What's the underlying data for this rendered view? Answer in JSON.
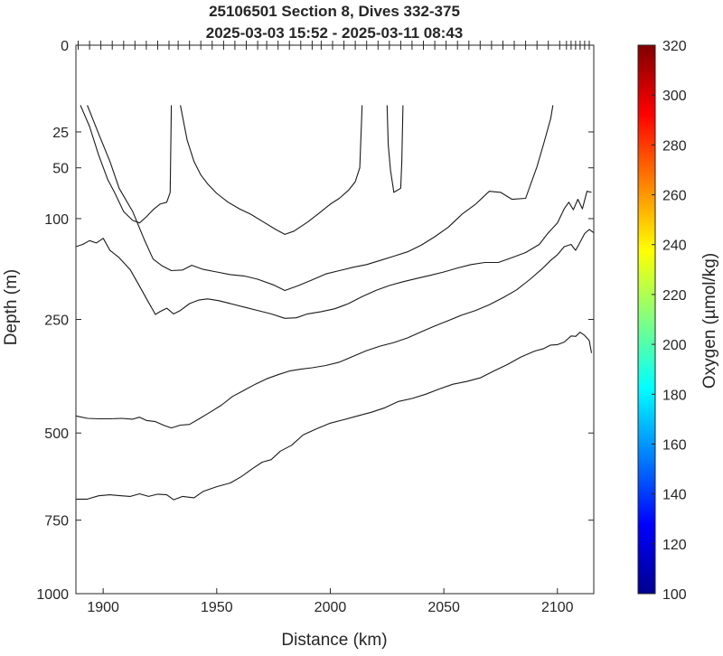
{
  "chart_data": {
    "type": "contour",
    "title": [
      "25106501 Section 8, Dives 332-375",
      "2025-03-03 15:52 - 2025-03-11 08:43"
    ],
    "xlabel": "Distance (km)",
    "ylabel": "Depth (m)",
    "xlim": [
      1888,
      2116
    ],
    "ylim": [
      1000,
      0
    ],
    "y_scale": "sqrt",
    "x_ticks": [
      1900,
      1950,
      2000,
      2050,
      2100
    ],
    "y_ticks": [
      0,
      25,
      50,
      100,
      250,
      500,
      750,
      1000
    ],
    "grid": false,
    "colorbar": {
      "label": "Oxygen (µmol/kg)",
      "min": 100,
      "max": 320,
      "ticks": [
        100,
        120,
        140,
        160,
        180,
        200,
        220,
        240,
        260,
        280,
        300,
        320
      ],
      "colormap": "jet",
      "colors": [
        "#00008f",
        "#0000ff",
        "#0080ff",
        "#00ffff",
        "#80ff80",
        "#ffff00",
        "#ff8000",
        "#ff0000",
        "#800000"
      ]
    },
    "dive_marks_km": [
      1889,
      1894,
      1899,
      1904,
      1909,
      1914,
      1919,
      1924,
      1929,
      1933,
      1938,
      1943,
      1948,
      1953,
      1958,
      1963,
      1968,
      1972,
      1977,
      1982,
      1987,
      1992,
      1996,
      2001,
      2006,
      2011,
      2016,
      2021,
      2026,
      2031,
      2036,
      2041,
      2046,
      2051,
      2056,
      2061,
      2066,
      2071,
      2076,
      2081,
      2086,
      2091,
      2096,
      2101,
      2104,
      2106,
      2108,
      2110,
      2112,
      2114
    ],
    "contours": [
      {
        "x": [
          1890,
          1894,
          1898,
          1902,
          1905,
          1909,
          1913,
          1916,
          1919,
          1922,
          1925,
          1928,
          1929.5,
          1930
        ],
        "y": [
          12,
          22,
          40,
          60,
          72,
          92,
          102,
          105,
          98,
          90,
          84,
          82,
          72,
          12
        ]
      },
      {
        "x": [
          1934,
          1937,
          1940,
          1943,
          1946,
          1950,
          1955,
          1960,
          1965,
          1970,
          1976,
          1980,
          1984,
          1990,
          1995,
          2000,
          2004,
          2008,
          2011,
          2013,
          2014
        ],
        "y": [
          12,
          30,
          45,
          56,
          64,
          73,
          82,
          89,
          95,
          103,
          113,
          119,
          115,
          104,
          94,
          84,
          78,
          70,
          62,
          50,
          12
        ]
      },
      {
        "x": [
          2025,
          2025.5,
          2026.5,
          2028,
          2031,
          2031.5,
          2032
        ],
        "y": [
          12,
          33,
          52,
          72,
          68,
          45,
          12
        ]
      },
      {
        "x": [
          1893,
          1898,
          1903,
          1907,
          1913,
          1918,
          1922,
          1926,
          1930,
          1935,
          1939,
          1944,
          1950,
          1956,
          1962,
          1968,
          1975,
          1980,
          1986,
          1992,
          1998,
          2004,
          2010,
          2016,
          2022,
          2028,
          2034,
          2040,
          2046,
          2052,
          2058,
          2064,
          2070,
          2075,
          2080,
          2086,
          2091,
          2094,
          2097,
          2098
        ],
        "y": [
          12,
          26,
          45,
          68,
          92,
          125,
          152,
          162,
          169,
          168,
          161,
          167,
          171,
          175,
          177,
          182,
          191,
          200,
          192,
          183,
          174,
          169,
          164,
          160,
          154,
          148,
          142,
          133,
          122,
          110,
          95,
          84,
          71,
          72,
          79,
          78,
          49,
          32,
          18,
          12
        ]
      },
      {
        "x": [
          1888,
          1891,
          1894,
          1897,
          1900,
          1903,
          1907,
          1912,
          1916,
          1920,
          1923,
          1925,
          1928,
          1931,
          1934,
          1938,
          1942,
          1946,
          1951,
          1957,
          1962,
          1968,
          1974,
          1980,
          1985,
          1990,
          1996,
          2002,
          2008,
          2014,
          2020,
          2026,
          2032,
          2038,
          2044,
          2050,
          2056,
          2062,
          2068,
          2074,
          2080,
          2086,
          2092,
          2096,
          2100,
          2103,
          2105,
          2107,
          2109,
          2111,
          2113,
          2115
        ],
        "y": [
          135,
          132,
          127,
          130,
          124,
          140,
          150,
          168,
          193,
          220,
          241,
          236,
          230,
          240,
          234,
          222,
          216,
          214,
          217,
          223,
          228,
          234,
          240,
          248,
          247,
          240,
          236,
          231,
          222,
          210,
          200,
          192,
          186,
          181,
          176,
          171,
          165,
          160,
          157,
          157,
          150,
          143,
          132,
          117,
          105,
          89,
          82,
          90,
          79,
          89,
          71,
          72
        ]
      },
      {
        "x": [
          1888,
          1893,
          1898,
          1903,
          1908,
          1913,
          1916,
          1919,
          1923,
          1927,
          1930,
          1934,
          1938,
          1942,
          1947,
          1952,
          1957,
          1962,
          1967,
          1972,
          1977,
          1982,
          1987,
          1992,
          1998,
          2004,
          2010,
          2016,
          2022,
          2028,
          2034,
          2040,
          2046,
          2052,
          2058,
          2064,
          2070,
          2076,
          2082,
          2088,
          2093,
          2097,
          2100,
          2103,
          2106,
          2108,
          2110,
          2112,
          2114,
          2116
        ],
        "y": [
          457,
          463,
          464,
          464,
          463,
          465,
          460,
          468,
          471,
          481,
          487,
          480,
          478,
          465,
          448,
          431,
          410,
          396,
          382,
          370,
          361,
          353,
          349,
          346,
          341,
          334,
          322,
          310,
          301,
          294,
          285,
          273,
          262,
          252,
          242,
          234,
          224,
          212,
          199,
          182,
          167,
          154,
          146,
          135,
          132,
          140,
          129,
          118,
          113,
          117
        ]
      },
      {
        "x": [
          1888,
          1893,
          1898,
          1903,
          1908,
          1912,
          1916,
          1920,
          1924,
          1928,
          1931,
          1935,
          1940,
          1944,
          1950,
          1956,
          1961,
          1966,
          1970,
          1974,
          1978,
          1983,
          1988,
          1994,
          2000,
          2006,
          2012,
          2018,
          2024,
          2030,
          2036,
          2042,
          2048,
          2054,
          2060,
          2066,
          2072,
          2078,
          2084,
          2090,
          2094,
          2097,
          2100,
          2103,
          2106,
          2108,
          2110,
          2112,
          2114,
          2115
        ],
        "y": [
          685,
          685,
          675,
          672,
          675,
          677,
          669,
          677,
          670,
          672,
          687,
          677,
          681,
          662,
          648,
          637,
          618,
          595,
          578,
          571,
          548,
          532,
          505,
          489,
          475,
          466,
          457,
          448,
          437,
          422,
          415,
          405,
          393,
          382,
          376,
          368,
          353,
          339,
          323,
          311,
          306,
          299,
          298,
          293,
          281,
          282,
          274,
          280,
          290,
          315
        ]
      }
    ]
  }
}
